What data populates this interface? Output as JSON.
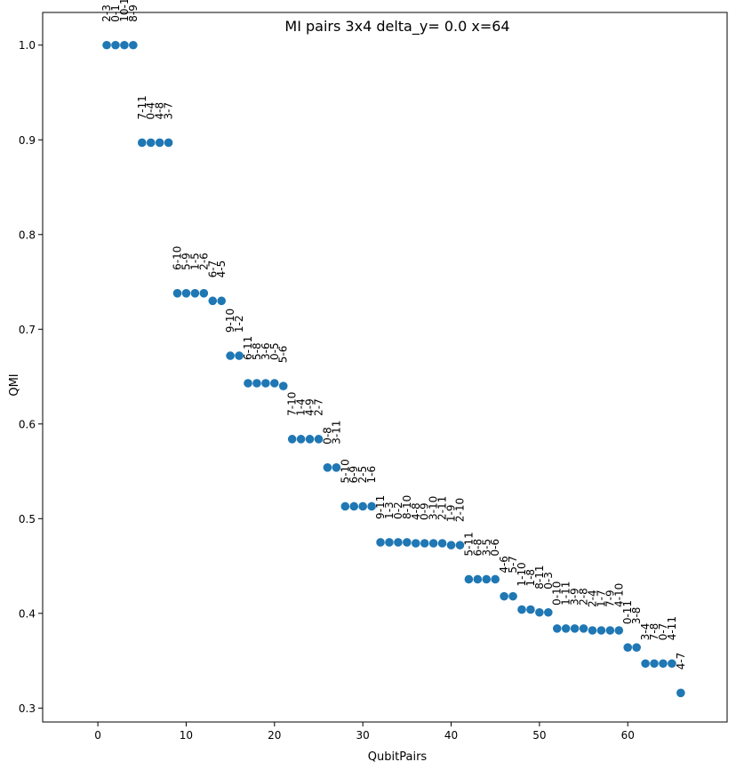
{
  "chart_data": {
    "type": "scatter",
    "title": "MI pairs 3x4 delta_y= 0.0 x=64",
    "xlabel": "QubitPairs",
    "ylabel": "QMI",
    "xlim": [
      -6.25,
      71.25
    ],
    "ylim": [
      0.2853,
      1.0345
    ],
    "xticks": [
      0,
      10,
      20,
      30,
      40,
      50,
      60
    ],
    "yticks": [
      0.3,
      0.4,
      0.5,
      0.6,
      0.7,
      0.8,
      0.9,
      1.0
    ],
    "ytick_labels": [
      "0.3",
      "0.4",
      "0.5",
      "0.6",
      "0.7",
      "0.8",
      "0.9",
      "1.0"
    ],
    "grid": false,
    "marker_color": "#1f77b4",
    "points": [
      {
        "x": 1,
        "y": 1.0,
        "label": "2-3"
      },
      {
        "x": 2,
        "y": 1.0,
        "label": "0-1"
      },
      {
        "x": 3,
        "y": 1.0,
        "label": "10-11"
      },
      {
        "x": 4,
        "y": 1.0,
        "label": "8-9"
      },
      {
        "x": 5,
        "y": 0.897,
        "label": "7-11"
      },
      {
        "x": 6,
        "y": 0.897,
        "label": "0-4"
      },
      {
        "x": 7,
        "y": 0.897,
        "label": "4-8"
      },
      {
        "x": 8,
        "y": 0.897,
        "label": "3-7"
      },
      {
        "x": 9,
        "y": 0.738,
        "label": "6-10"
      },
      {
        "x": 10,
        "y": 0.738,
        "label": "5-9"
      },
      {
        "x": 11,
        "y": 0.738,
        "label": "1-5"
      },
      {
        "x": 12,
        "y": 0.738,
        "label": "2-6"
      },
      {
        "x": 13,
        "y": 0.73,
        "label": "6-7"
      },
      {
        "x": 14,
        "y": 0.73,
        "label": "4-5"
      },
      {
        "x": 15,
        "y": 0.672,
        "label": "9-10"
      },
      {
        "x": 16,
        "y": 0.672,
        "label": "1-2"
      },
      {
        "x": 17,
        "y": 0.643,
        "label": "6-11"
      },
      {
        "x": 18,
        "y": 0.643,
        "label": "5-8"
      },
      {
        "x": 19,
        "y": 0.643,
        "label": "3-6"
      },
      {
        "x": 20,
        "y": 0.643,
        "label": "0-5"
      },
      {
        "x": 21,
        "y": 0.64,
        "label": "5-6"
      },
      {
        "x": 22,
        "y": 0.584,
        "label": "7-10"
      },
      {
        "x": 23,
        "y": 0.584,
        "label": "1-4"
      },
      {
        "x": 24,
        "y": 0.584,
        "label": "4-9"
      },
      {
        "x": 25,
        "y": 0.584,
        "label": "2-7"
      },
      {
        "x": 26,
        "y": 0.554,
        "label": "0-8"
      },
      {
        "x": 27,
        "y": 0.554,
        "label": "3-11"
      },
      {
        "x": 28,
        "y": 0.513,
        "label": "5-10"
      },
      {
        "x": 29,
        "y": 0.513,
        "label": "6-9"
      },
      {
        "x": 30,
        "y": 0.513,
        "label": "2-5"
      },
      {
        "x": 31,
        "y": 0.513,
        "label": "1-6"
      },
      {
        "x": 32,
        "y": 0.475,
        "label": "9-11"
      },
      {
        "x": 33,
        "y": 0.475,
        "label": "1-3"
      },
      {
        "x": 34,
        "y": 0.475,
        "label": "0-2"
      },
      {
        "x": 35,
        "y": 0.475,
        "label": "8-10"
      },
      {
        "x": 36,
        "y": 0.474,
        "label": "4-8"
      },
      {
        "x": 37,
        "y": 0.474,
        "label": "0-9"
      },
      {
        "x": 38,
        "y": 0.474,
        "label": "3-10"
      },
      {
        "x": 39,
        "y": 0.474,
        "label": "2-11"
      },
      {
        "x": 40,
        "y": 0.472,
        "label": "1-9"
      },
      {
        "x": 41,
        "y": 0.472,
        "label": "2-10"
      },
      {
        "x": 42,
        "y": 0.436,
        "label": "5-11"
      },
      {
        "x": 43,
        "y": 0.436,
        "label": "6-8"
      },
      {
        "x": 44,
        "y": 0.436,
        "label": "3-5"
      },
      {
        "x": 45,
        "y": 0.436,
        "label": "0-6"
      },
      {
        "x": 46,
        "y": 0.418,
        "label": "4-6"
      },
      {
        "x": 47,
        "y": 0.418,
        "label": "5-7"
      },
      {
        "x": 48,
        "y": 0.404,
        "label": "1-10"
      },
      {
        "x": 49,
        "y": 0.404,
        "label": "1-8"
      },
      {
        "x": 50,
        "y": 0.401,
        "label": "8-11"
      },
      {
        "x": 51,
        "y": 0.401,
        "label": "0-3"
      },
      {
        "x": 52,
        "y": 0.384,
        "label": "0-10"
      },
      {
        "x": 53,
        "y": 0.384,
        "label": "1-11"
      },
      {
        "x": 54,
        "y": 0.384,
        "label": "3-9"
      },
      {
        "x": 55,
        "y": 0.384,
        "label": "2-8"
      },
      {
        "x": 56,
        "y": 0.382,
        "label": "2-4"
      },
      {
        "x": 57,
        "y": 0.382,
        "label": "1-7"
      },
      {
        "x": 58,
        "y": 0.382,
        "label": "7-9"
      },
      {
        "x": 59,
        "y": 0.382,
        "label": "4-10"
      },
      {
        "x": 60,
        "y": 0.364,
        "label": "0-11"
      },
      {
        "x": 61,
        "y": 0.364,
        "label": "3-8"
      },
      {
        "x": 62,
        "y": 0.347,
        "label": "3-4"
      },
      {
        "x": 63,
        "y": 0.347,
        "label": "7-8"
      },
      {
        "x": 64,
        "y": 0.347,
        "label": "0-7"
      },
      {
        "x": 65,
        "y": 0.347,
        "label": "4-11"
      },
      {
        "x": 66,
        "y": 0.316,
        "label": "4-7"
      }
    ]
  }
}
